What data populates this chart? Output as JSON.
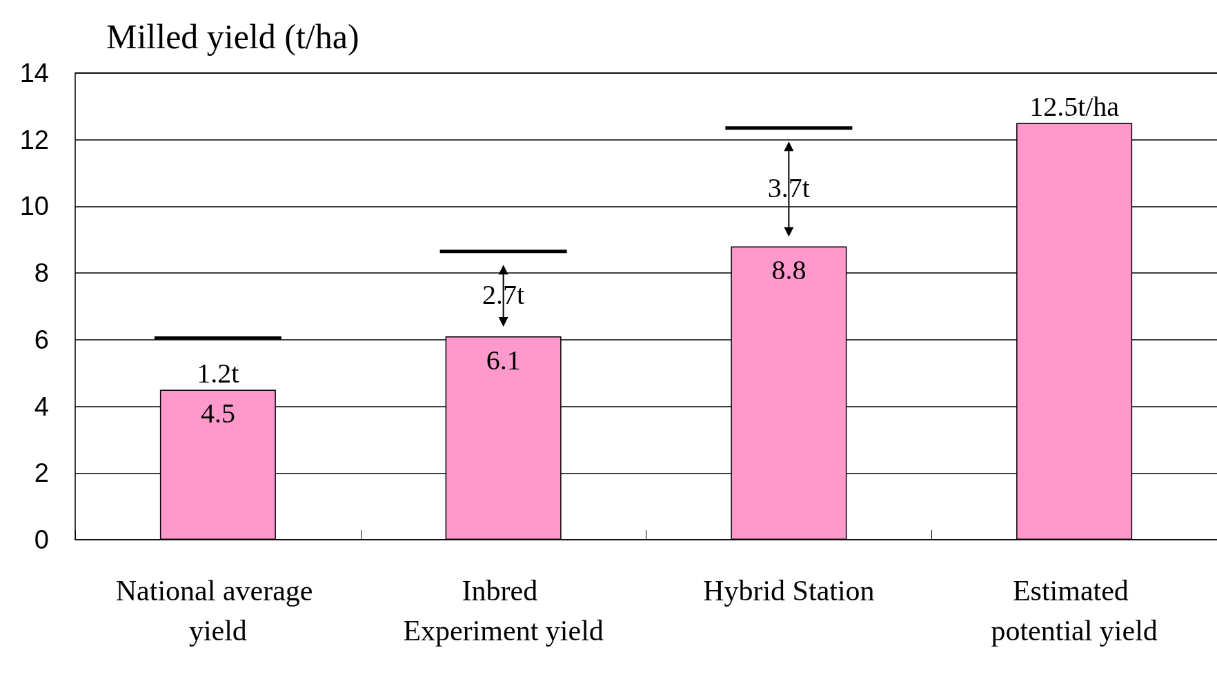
{
  "chart_data": {
    "type": "bar",
    "ylabel": "Milled yield (t/ha)",
    "categories": [
      "National average yield",
      "Inbred Experiment yield",
      "Hybrid Station",
      "Estimated potential yield"
    ],
    "series": [
      {
        "color": "#ff99cc",
        "values": [
          4.5,
          6.1,
          8.8,
          12.5
        ],
        "value_labels": [
          "4.5",
          "6.1",
          "8.8",
          null
        ]
      },
      {
        "type": "bar",
        "color": "#000000",
        "base": [
          6.0,
          8.6,
          12.3,
          null
        ],
        "values": [
          0.1,
          0.1,
          0.1,
          null
        ]
      }
    ],
    "annotations": [
      "1.2t",
      "2.7t",
      "3.7t",
      "12.5t/ha"
    ],
    "ylim": [
      0,
      14
    ],
    "yticks": [
      0,
      2,
      4,
      6,
      8,
      10,
      12,
      14
    ],
    "grid": "y"
  }
}
